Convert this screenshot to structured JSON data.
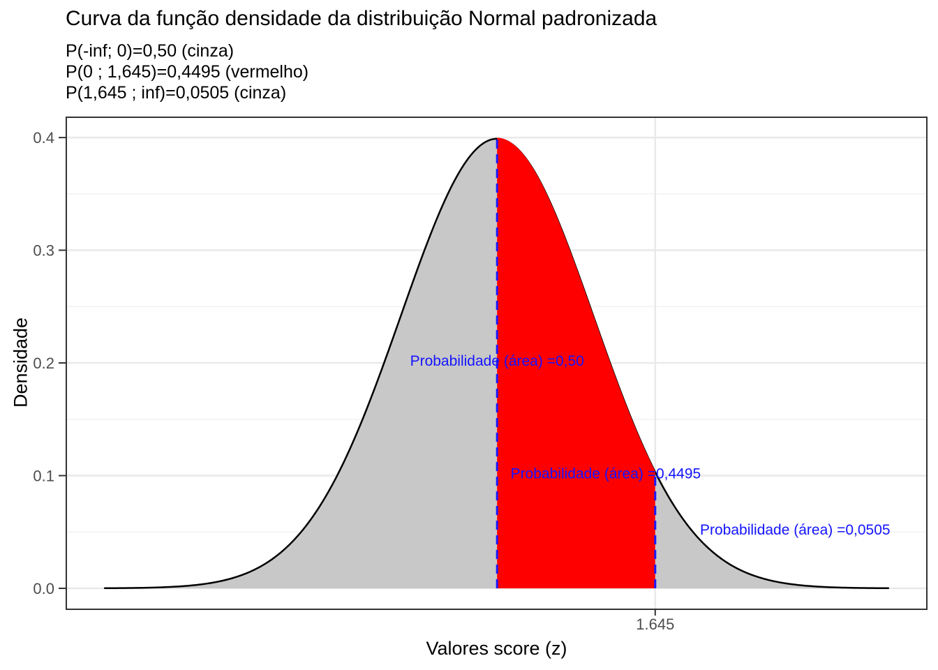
{
  "chart_data": {
    "type": "area",
    "title": "Curva da função densidade da distribuição Normal padronizada",
    "subtitle_lines": [
      "P(-inf; 0)=0,50 (cinza)",
      "P(0 ; 1,645)=0,4495 (vermelho)",
      "P(1,645 ; inf)=0,0505 (cinza)"
    ],
    "xlabel": "Valores score (z)",
    "ylabel": "Densidade",
    "distribution": {
      "name": "standard-normal",
      "mean": 0,
      "sd": 1
    },
    "curve_x_range": [
      -4.08,
      4.07
    ],
    "xlim": [
      -4.48,
      4.47
    ],
    "ylim": [
      -0.0186,
      0.418
    ],
    "x_ticks": [
      {
        "value": 1.645,
        "label": "1.645"
      }
    ],
    "y_ticks": [
      {
        "value": 0.0,
        "label": "0.0"
      },
      {
        "value": 0.1,
        "label": "0.1"
      },
      {
        "value": 0.2,
        "label": "0.2"
      },
      {
        "value": 0.3,
        "label": "0.3"
      },
      {
        "value": 0.4,
        "label": "0.4"
      }
    ],
    "grid": {
      "y_minor": [
        0.05,
        0.15,
        0.25,
        0.35
      ],
      "major_color": "#e9e9e9",
      "minor_color": "#f2f2f2"
    },
    "regions": [
      {
        "name": "left-tail-gray",
        "from": -4.08,
        "to": 0,
        "fill": "#c8c8c8",
        "probability": "0,50",
        "above_curve": false
      },
      {
        "name": "middle-red",
        "from": 0,
        "to": 1.645,
        "fill": "#ff0000",
        "probability": "0,4495",
        "above_curve": true
      },
      {
        "name": "right-tail-gray",
        "from": 1.645,
        "to": 4.07,
        "fill": "#c8c8c8",
        "probability": "0,0505",
        "above_curve": false
      }
    ],
    "curve": {
      "color": "#000000",
      "width": 2.5
    },
    "vlines": [
      {
        "x": 0,
        "name": "vline-z-zero"
      },
      {
        "x": 1.645,
        "name": "vline-z-1645"
      }
    ],
    "vline_style": {
      "color": "#1a1aff",
      "width": 3,
      "dash": "13 8"
    },
    "annotations": [
      {
        "text": "Probabilidade (área) =0,50",
        "x": 0,
        "y": 0.2
      },
      {
        "text": "Probabilidade (área) =0,4495",
        "x": 1.13,
        "y": 0.1
      },
      {
        "text": "Probabilidade (área) =0,0505",
        "x": 3.1,
        "y": 0.05
      }
    ],
    "annotation_color": "#1414ff",
    "panel": {
      "border_color": "#333333",
      "background": "#ffffff",
      "tick_color": "#333333",
      "tick_label_color": "#4d4d4d"
    },
    "legend": "none"
  }
}
